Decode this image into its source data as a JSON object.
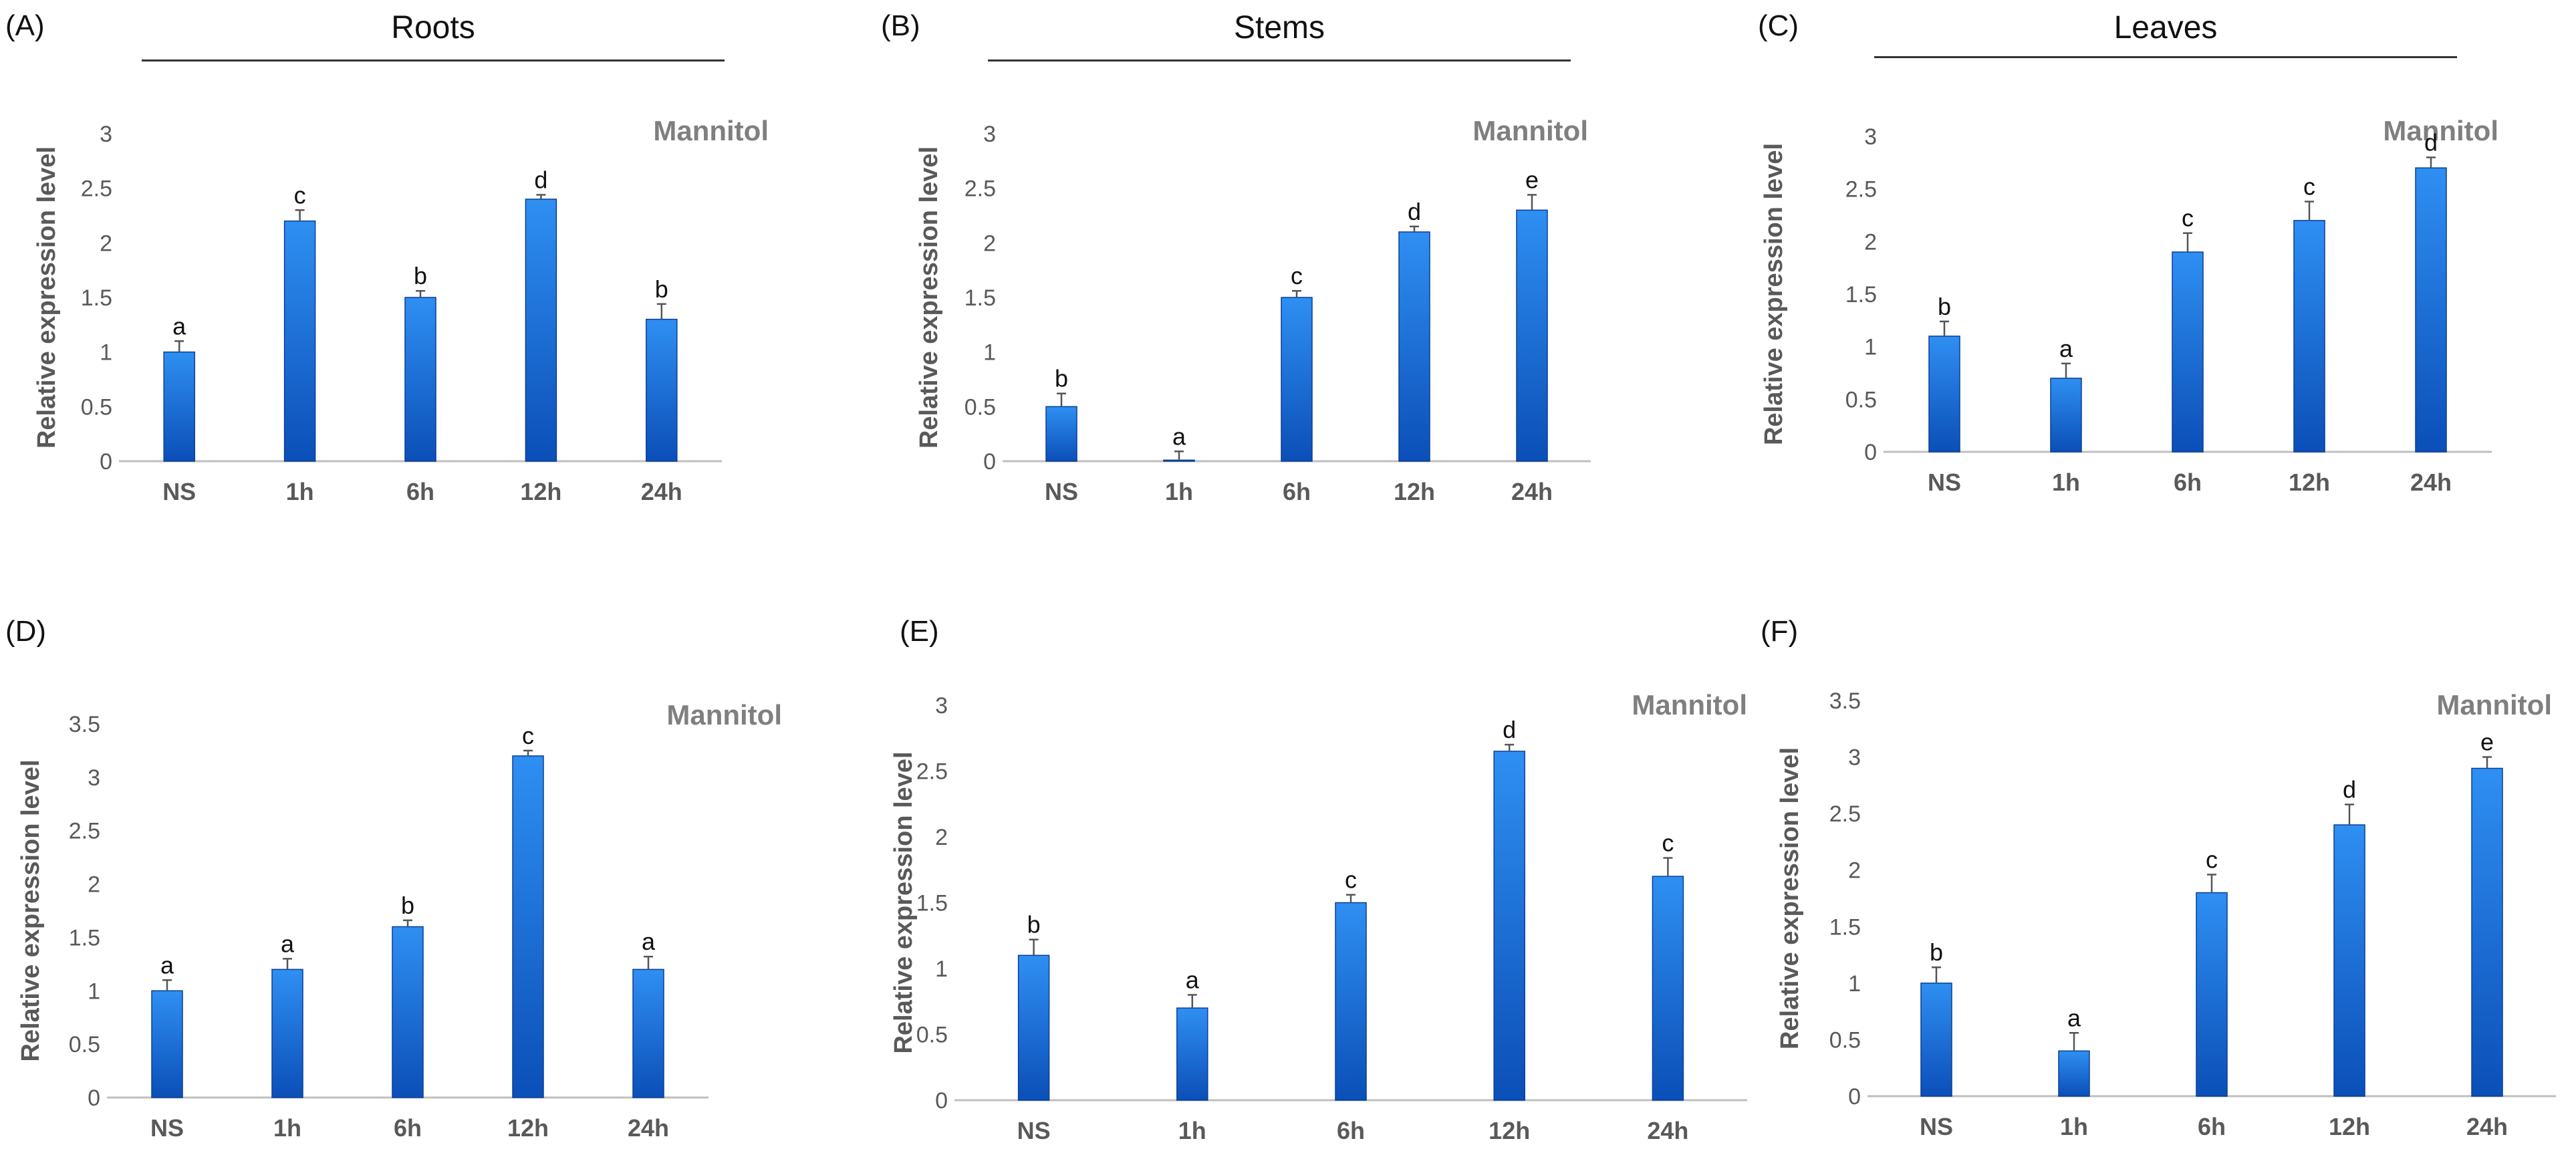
{
  "colors": {
    "bar_top": "#2f8ff2",
    "bar_bottom": "#0b4fb8",
    "bar_edge": "#0a3f96",
    "axis": "#bfbfbf",
    "tick_text": "#595959",
    "axis_title": "#595959",
    "treatment": "#7f7f7f",
    "letters": "#111111"
  },
  "columns": [
    {
      "title": "Roots"
    },
    {
      "title": "Stems"
    },
    {
      "title": "Leaves"
    }
  ],
  "chart_data": [
    {
      "panel": "(A)",
      "type": "bar",
      "annotation": "Mannitol",
      "ylabel": "Relative expression level",
      "categories": [
        "NS",
        "1h",
        "6h",
        "12h",
        "24h"
      ],
      "values": [
        1.0,
        2.2,
        1.5,
        2.4,
        1.3
      ],
      "errors": [
        0.1,
        0.1,
        0.06,
        0.04,
        0.14
      ],
      "letters": [
        "a",
        "c",
        "b",
        "d",
        "b"
      ],
      "yticks": [
        "0",
        "0.5",
        "1",
        "1.5",
        "2",
        "2.5",
        "3"
      ],
      "ylim": [
        0,
        3
      ]
    },
    {
      "panel": "(B)",
      "type": "bar",
      "annotation": "Mannitol",
      "ylabel": "Relative expression level",
      "categories": [
        "NS",
        "1h",
        "6h",
        "12h",
        "24h"
      ],
      "values": [
        0.5,
        0.01,
        1.5,
        2.1,
        2.3
      ],
      "errors": [
        0.12,
        0.08,
        0.06,
        0.05,
        0.14
      ],
      "letters": [
        "b",
        "a",
        "c",
        "d",
        "e"
      ],
      "yticks": [
        "0",
        "0.5",
        "1",
        "1.5",
        "2",
        "2.5",
        "3"
      ],
      "ylim": [
        0,
        3
      ]
    },
    {
      "panel": "(C)",
      "type": "bar",
      "annotation": "Mannitol",
      "ylabel": "Relative expression level",
      "categories": [
        "NS",
        "1h",
        "6h",
        "12h",
        "24h"
      ],
      "values": [
        1.1,
        0.7,
        1.9,
        2.2,
        2.7
      ],
      "errors": [
        0.14,
        0.14,
        0.18,
        0.18,
        0.1
      ],
      "letters": [
        "b",
        "a",
        "c",
        "c",
        "d"
      ],
      "yticks": [
        "0",
        "0.5",
        "1",
        "1.5",
        "2",
        "2.5",
        "3"
      ],
      "ylim": [
        0,
        3
      ]
    },
    {
      "panel": "(D)",
      "type": "bar",
      "annotation": "Mannitol",
      "ylabel": "Relative expression level",
      "categories": [
        "NS",
        "1h",
        "6h",
        "12h",
        "24h"
      ],
      "values": [
        1.0,
        1.2,
        1.6,
        3.2,
        1.2
      ],
      "errors": [
        0.1,
        0.1,
        0.06,
        0.05,
        0.12
      ],
      "letters": [
        "a",
        "a",
        "b",
        "c",
        "a"
      ],
      "yticks": [
        "0",
        "0.5",
        "1",
        "1.5",
        "2",
        "2.5",
        "3",
        "3.5"
      ],
      "ylim": [
        0,
        3.5
      ]
    },
    {
      "panel": "(E)",
      "type": "bar",
      "annotation": "Mannitol",
      "ylabel": "Relative expression level",
      "categories": [
        "NS",
        "1h",
        "6h",
        "12h",
        "24h"
      ],
      "values": [
        1.1,
        0.7,
        1.5,
        2.65,
        1.7
      ],
      "errors": [
        0.12,
        0.1,
        0.06,
        0.05,
        0.14
      ],
      "letters": [
        "b",
        "a",
        "c",
        "d",
        "c"
      ],
      "yticks": [
        "0",
        "0.5",
        "1",
        "1.5",
        "2",
        "2.5",
        "3"
      ],
      "ylim": [
        0,
        3
      ]
    },
    {
      "panel": "(F)",
      "type": "bar",
      "annotation": "Mannitol",
      "ylabel": "Relative expression level",
      "categories": [
        "NS",
        "1h",
        "6h",
        "12h",
        "24h"
      ],
      "values": [
        1.0,
        0.4,
        1.8,
        2.4,
        2.9
      ],
      "errors": [
        0.14,
        0.16,
        0.16,
        0.18,
        0.1
      ],
      "letters": [
        "b",
        "a",
        "c",
        "d",
        "e"
      ],
      "yticks": [
        "0",
        "0.5",
        "1",
        "1.5",
        "2",
        "2.5",
        "3",
        "3.5"
      ],
      "ylim": [
        0,
        3.5
      ]
    }
  ]
}
